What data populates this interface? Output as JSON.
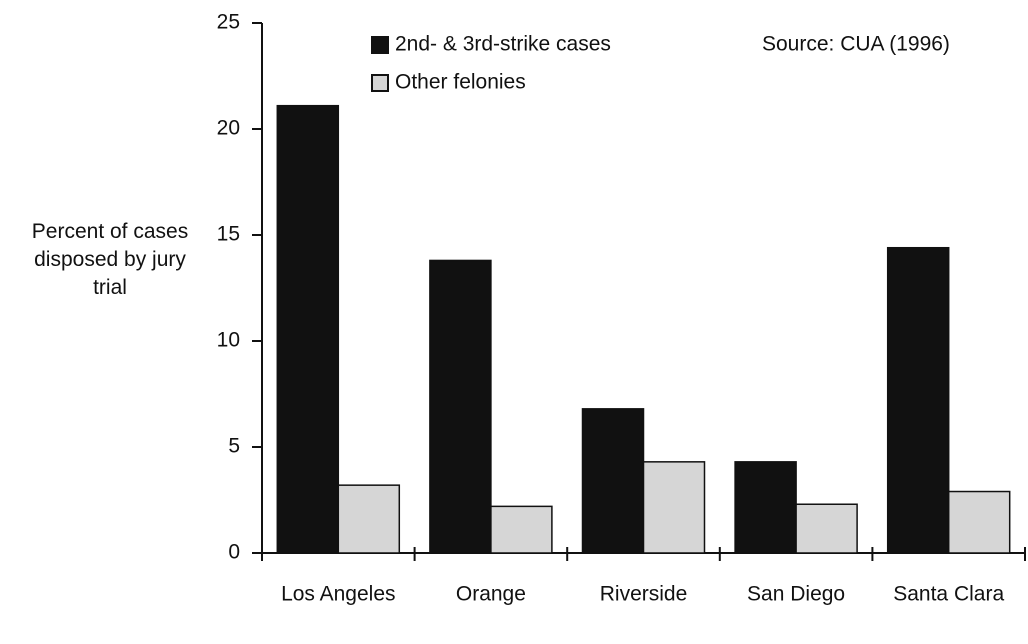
{
  "chart_data": {
    "type": "bar",
    "ylabel": "Percent of cases disposed by jury trial",
    "annotation": "Source:  CUA (1996)",
    "categories": [
      "Los Angeles",
      "Orange",
      "Riverside",
      "San Diego",
      "Santa Clara"
    ],
    "series": [
      {
        "name": "2nd- & 3rd-strike cases",
        "color": "#111111",
        "values": [
          21.1,
          13.8,
          6.8,
          4.3,
          14.4
        ]
      },
      {
        "name": "Other felonies",
        "color": "#d6d6d6",
        "values": [
          3.2,
          2.2,
          4.3,
          2.3,
          2.9
        ]
      }
    ],
    "ylim": [
      0,
      25
    ],
    "yticks": [
      0,
      5,
      10,
      15,
      20,
      25
    ],
    "grid": false
  }
}
